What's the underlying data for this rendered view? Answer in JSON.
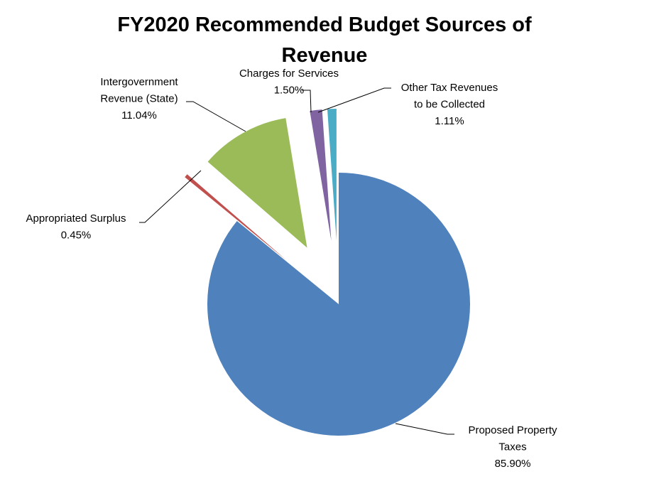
{
  "chart_data": {
    "type": "pie",
    "title": [
      "FY2020 Recommended Budget Sources of",
      "Revenue"
    ],
    "start_angle_deg": 0,
    "direction": "clockwise",
    "slices": [
      {
        "name": [
          "Proposed Property",
          "Taxes"
        ],
        "value": 85.9,
        "label": "85.90%",
        "color": "#4F81BD",
        "exploded": false
      },
      {
        "name": [
          "Appropriated Surplus"
        ],
        "value": 0.45,
        "label": "0.45%",
        "color": "#C0504D",
        "exploded": true
      },
      {
        "name": [
          "Intergovernment",
          "Revenue (State)"
        ],
        "value": 11.04,
        "label": "11.04%",
        "color": "#9BBB59",
        "exploded": true
      },
      {
        "name": [
          "Charges for Services"
        ],
        "value": 1.5,
        "label": "1.50%",
        "color": "#8064A2",
        "exploded": true
      },
      {
        "name": [
          "Other Tax Revenues",
          "to be Collected"
        ],
        "value": 1.11,
        "label": "1.11%",
        "color": "#4BACC6",
        "exploded": true
      }
    ],
    "legend": "none",
    "data_labels": "category name and percentage with leader lines"
  }
}
